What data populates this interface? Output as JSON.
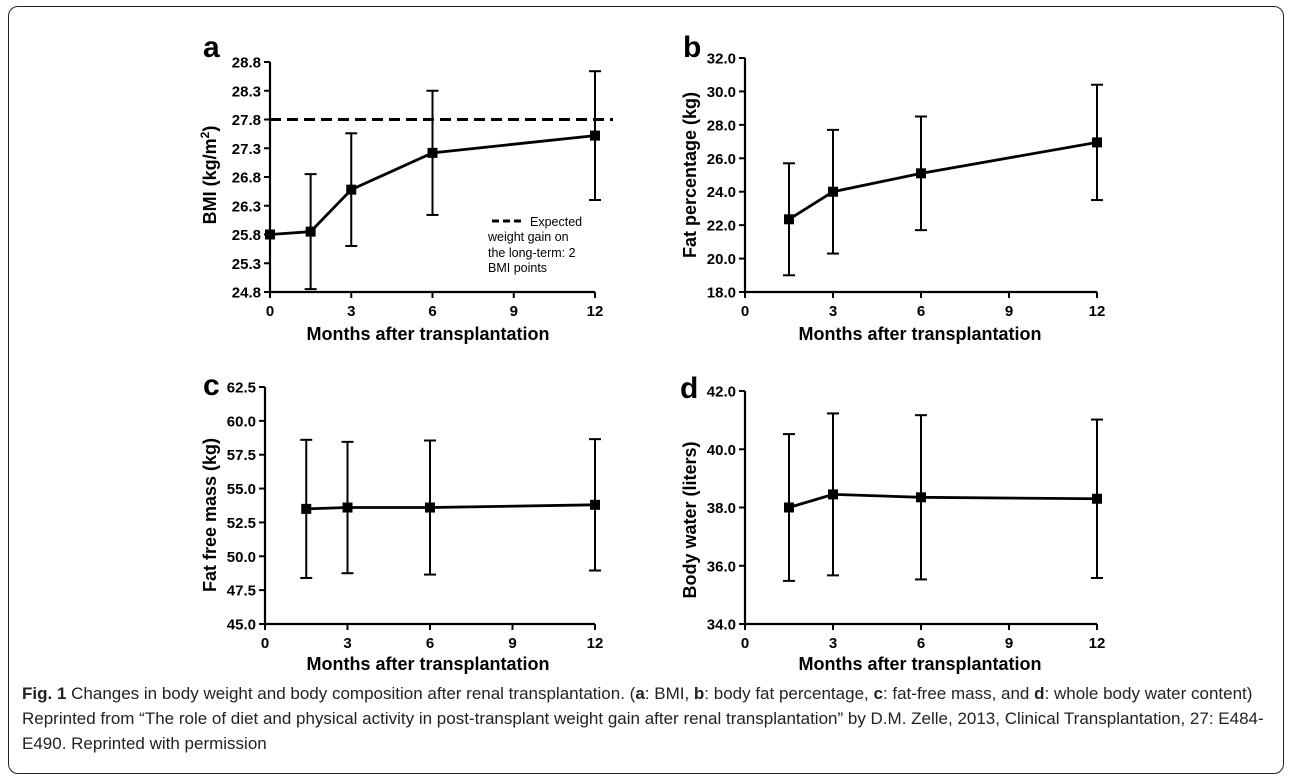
{
  "chart_data": [
    {
      "panel": "a",
      "type": "line",
      "xlabel": "Months after transplantation",
      "ylabel": "BMI (kg/m²)",
      "ylabel_main": "BMI (kg/m",
      "ylabel_sup": "2",
      "ylabel_end": ")",
      "xlim": [
        0,
        12
      ],
      "ylim": [
        24.8,
        28.8
      ],
      "xticks": [
        "0",
        "3",
        "6",
        "9",
        "12"
      ],
      "yticks": [
        "24.8",
        "25.3",
        "25.8",
        "26.3",
        "26.8",
        "27.3",
        "27.8",
        "28.3",
        "28.8"
      ],
      "series": [
        {
          "x": [
            0,
            1.5,
            3,
            6,
            12
          ],
          "y": [
            25.8,
            25.85,
            26.58,
            27.22,
            27.52
          ],
          "err": [
            0,
            1.0,
            0.98,
            1.08,
            1.12
          ]
        }
      ],
      "reference_line": {
        "y": 27.8,
        "style": "dashed"
      },
      "legend": {
        "position": "lower-right",
        "lines": [
          "Expected",
          "weight gain on",
          "the long-term: 2",
          "BMI points"
        ]
      }
    },
    {
      "panel": "b",
      "type": "line",
      "xlabel": "Months after transplantation",
      "ylabel": "Fat percentage (kg)",
      "xlim": [
        0,
        12
      ],
      "ylim": [
        18.0,
        32.0
      ],
      "xticks": [
        "0",
        "3",
        "6",
        "9",
        "12"
      ],
      "yticks": [
        "18.0",
        "20.0",
        "22.0",
        "24.0",
        "26.0",
        "28.0",
        "30.0",
        "32.0"
      ],
      "series": [
        {
          "x": [
            1.5,
            3,
            6,
            12
          ],
          "y": [
            22.35,
            24.0,
            25.1,
            26.95
          ],
          "err": [
            3.35,
            3.7,
            3.4,
            3.45
          ]
        }
      ]
    },
    {
      "panel": "c",
      "type": "line",
      "xlabel": "Months after transplantation",
      "ylabel": "Fat free mass (kg)",
      "xlim": [
        0,
        12
      ],
      "ylim": [
        45.0,
        62.5
      ],
      "xticks": [
        "0",
        "3",
        "6",
        "9",
        "12"
      ],
      "yticks": [
        "45.0",
        "47.5",
        "50.0",
        "52.5",
        "55.0",
        "57.5",
        "60.0",
        "62.5"
      ],
      "series": [
        {
          "x": [
            1.5,
            3,
            6,
            12
          ],
          "y": [
            53.5,
            53.6,
            53.6,
            53.8
          ],
          "err": [
            5.1,
            4.85,
            4.95,
            4.85
          ]
        }
      ]
    },
    {
      "panel": "d",
      "type": "line",
      "xlabel": "Months after transplantation",
      "ylabel": "Body water (liters)",
      "xlim": [
        0,
        12
      ],
      "ylim": [
        34.0,
        42.0
      ],
      "xticks": [
        "0",
        "3",
        "6",
        "9",
        "12"
      ],
      "yticks": [
        "34.0",
        "36.0",
        "38.0",
        "40.0",
        "42.0"
      ],
      "series": [
        {
          "x": [
            1.5,
            3,
            6,
            12
          ],
          "y": [
            38.0,
            38.45,
            38.35,
            38.3
          ],
          "err": [
            2.52,
            2.78,
            2.82,
            2.72
          ]
        }
      ]
    }
  ],
  "caption": {
    "label": "Fig. 1",
    "intro": " Changes in body weight and body composition after renal transplantation. (",
    "a_key": "a",
    "a_text": ": BMI, ",
    "b_key": "b",
    "b_text": ": body fat percentage, ",
    "c_key": "c",
    "c_text": ": fat-free mass, and ",
    "d_key": "d",
    "d_text": ": whole body water content) Reprinted from “The role of diet and physical activity in post-transplant weight gain after renal transplantation” by D.M. Zelle, 2013, Clinical Transplantation, 27: E484-E490. Reprinted with permission"
  }
}
